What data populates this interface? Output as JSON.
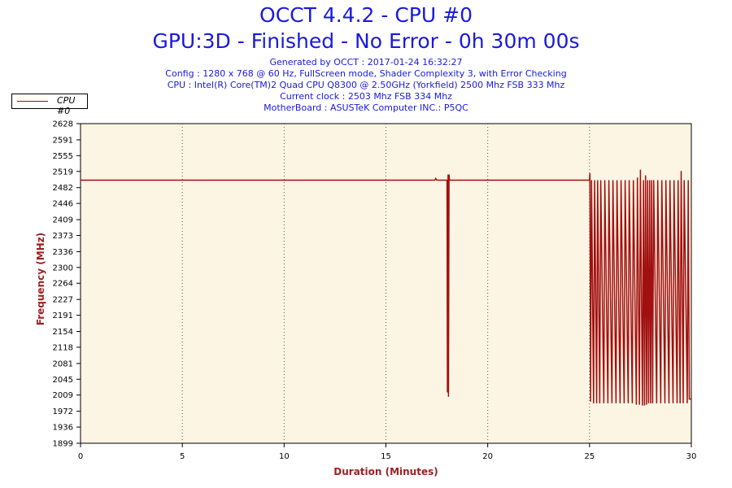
{
  "title": "OCCT 4.4.2 - CPU #0",
  "subtitle": "GPU:3D - Finished - No Error - 0h 30m 00s",
  "info_lines": [
    "Generated by OCCT : 2017-01-24 16:32:27",
    "Config : 1280 x 768 @ 60 Hz, FullScreen mode, Shader Complexity 3, with Error Checking",
    "CPU : Intel(R) Core(TM)2 Quad CPU Q8300 @ 2.50GHz (Yorkfield) 2500 Mhz FSB 333 Mhz",
    "Current clock : 2503 Mhz FSB 334 Mhz",
    "MotherBoard : ASUSTeK Computer INC.: P5QC"
  ],
  "colors": {
    "series": "#a01010",
    "plot_bg": "#fdf5e4",
    "title": "#1a1adc",
    "axis_label": "#9b2222"
  },
  "chart_data": {
    "type": "line",
    "xlabel": "Duration (Minutes)",
    "ylabel": "Frequency (MHz)",
    "xlim": [
      0,
      30
    ],
    "ylim": [
      1899,
      2628
    ],
    "x_ticks": [
      0,
      5,
      10,
      15,
      20,
      25,
      30
    ],
    "y_ticks": [
      1899,
      1936,
      1972,
      2009,
      2045,
      2081,
      2118,
      2154,
      2191,
      2227,
      2264,
      2300,
      2336,
      2373,
      2409,
      2446,
      2482,
      2519,
      2555,
      2591,
      2628
    ],
    "grid": "vertical dotted",
    "legend": "top-left",
    "series": [
      {
        "name": "CPU #0",
        "x": [
          0,
          17.4,
          17.45,
          17.5,
          18.0,
          18.02,
          18.05,
          18.07,
          18.1,
          18.12,
          25.0,
          25.02,
          25.05,
          25.1,
          25.2,
          25.25,
          25.35,
          25.4,
          25.5,
          25.55,
          25.7,
          25.75,
          25.9,
          25.95,
          26.1,
          26.15,
          26.3,
          26.35,
          26.5,
          26.55,
          26.7,
          26.75,
          26.9,
          26.95,
          27.1,
          27.15,
          27.3,
          27.35,
          27.45,
          27.5,
          27.6,
          27.65,
          27.7,
          27.75,
          27.8,
          27.85,
          27.9,
          27.95,
          28.0,
          28.05,
          28.1,
          28.15,
          28.3,
          28.35,
          28.5,
          28.55,
          28.7,
          28.75,
          28.9,
          28.95,
          29.1,
          29.15,
          29.3,
          29.35,
          29.45,
          29.5,
          29.6,
          29.65,
          29.8,
          29.85,
          29.9,
          30.0
        ],
        "y": [
          2499,
          2499,
          2503,
          2499,
          2499,
          2015,
          2512,
          2005,
          2512,
          2499,
          2499,
          2515,
          1994,
          2499,
          1990,
          2499,
          1990,
          2499,
          1990,
          2499,
          1990,
          2499,
          1990,
          2499,
          1990,
          2499,
          1990,
          2499,
          1990,
          2499,
          1990,
          2499,
          1990,
          2499,
          1990,
          2499,
          1987,
          2505,
          1987,
          2523,
          1985,
          2499,
          1985,
          2510,
          1987,
          2499,
          1990,
          2499,
          1990,
          2499,
          1990,
          2499,
          1990,
          2499,
          1990,
          2499,
          1990,
          2499,
          1990,
          2499,
          1990,
          2499,
          1990,
          2499,
          1990,
          2520,
          1990,
          2499,
          1990,
          2499,
          2000,
          2000
        ]
      }
    ]
  }
}
